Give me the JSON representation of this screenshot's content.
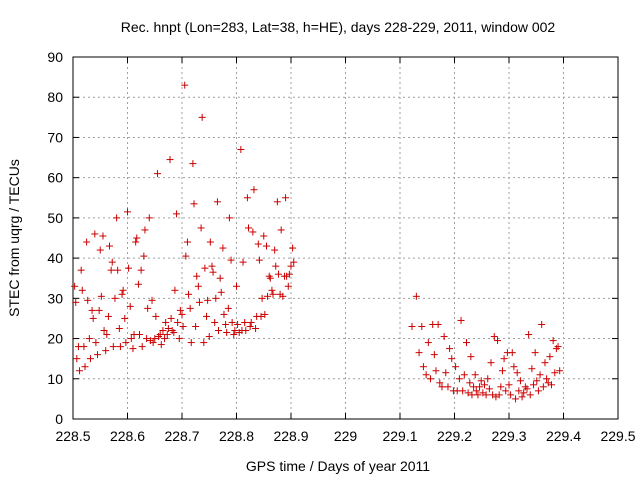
{
  "chart_data": {
    "type": "scatter",
    "title": "Rec. hnpt (Lon=283, Lat=38, h=HE), days 228-229, 2011, window 002",
    "xlabel": "GPS time / Days of year 2011",
    "ylabel": "STEC from uqrg / TECUs",
    "xlim": [
      228.5,
      229.5
    ],
    "ylim": [
      0,
      90
    ],
    "xticks": [
      228.5,
      228.6,
      228.7,
      228.8,
      228.9,
      229,
      229.1,
      229.2,
      229.3,
      229.4,
      229.5
    ],
    "xtick_labels": [
      "228.5",
      "228.6",
      "228.7",
      "228.8",
      "228.9",
      "229",
      "229.1",
      "229.2",
      "229.3",
      "229.4",
      "229.5"
    ],
    "yticks": [
      0,
      10,
      20,
      30,
      40,
      50,
      60,
      70,
      80,
      90
    ],
    "ytick_labels": [
      "0",
      "10",
      "20",
      "30",
      "40",
      "50",
      "60",
      "70",
      "80",
      "90"
    ],
    "grid": true,
    "marker": "+",
    "color": "#cc0000",
    "series": [
      {
        "points": [
          [
            228.503,
            33.0
          ],
          [
            228.505,
            29.0
          ],
          [
            228.507,
            15.0
          ],
          [
            228.51,
            18.0
          ],
          [
            228.512,
            12.0
          ],
          [
            228.515,
            37.0
          ],
          [
            228.517,
            32.0
          ],
          [
            228.52,
            18.0
          ],
          [
            228.522,
            13.0
          ],
          [
            228.525,
            44.0
          ],
          [
            228.527,
            29.5
          ],
          [
            228.53,
            20.0
          ],
          [
            228.532,
            15.0
          ],
          [
            228.535,
            27.0
          ],
          [
            228.537,
            25.0
          ],
          [
            228.54,
            46.0
          ],
          [
            228.542,
            19.0
          ],
          [
            228.545,
            16.0
          ],
          [
            228.548,
            27.0
          ],
          [
            228.55,
            42.0
          ],
          [
            228.552,
            30.5
          ],
          [
            228.555,
            45.5
          ],
          [
            228.557,
            22.0
          ],
          [
            228.56,
            17.0
          ],
          [
            228.562,
            21.0
          ],
          [
            228.565,
            25.5
          ],
          [
            228.567,
            43.0
          ],
          [
            228.57,
            37.0
          ],
          [
            228.572,
            39.0
          ],
          [
            228.574,
            18.0
          ],
          [
            228.577,
            30.0
          ],
          [
            228.58,
            50.0
          ],
          [
            228.582,
            37.0
          ],
          [
            228.585,
            22.5
          ],
          [
            228.587,
            18.0
          ],
          [
            228.59,
            31.0
          ],
          [
            228.592,
            32.0
          ],
          [
            228.595,
            25.0
          ],
          [
            228.597,
            19.0
          ],
          [
            228.6,
            51.5
          ],
          [
            228.602,
            37.5
          ],
          [
            228.605,
            28.0
          ],
          [
            228.607,
            20.0
          ],
          [
            228.61,
            17.5
          ],
          [
            228.612,
            21.0
          ],
          [
            228.615,
            44.0
          ],
          [
            228.617,
            45.0
          ],
          [
            228.62,
            33.5
          ],
          [
            228.622,
            21.0
          ],
          [
            228.625,
            37.0
          ],
          [
            228.627,
            18.0
          ],
          [
            228.63,
            40.5
          ],
          [
            228.632,
            47.0
          ],
          [
            228.635,
            20.0
          ],
          [
            228.637,
            27.5
          ],
          [
            228.64,
            50.0
          ],
          [
            228.642,
            19.5
          ],
          [
            228.645,
            29.5
          ],
          [
            228.647,
            19.0
          ],
          [
            228.65,
            20.0
          ],
          [
            228.652,
            25.5
          ],
          [
            228.655,
            61.0
          ],
          [
            228.657,
            20.5
          ],
          [
            228.66,
            21.0
          ],
          [
            228.662,
            18.5
          ],
          [
            228.665,
            22.0
          ],
          [
            228.668,
            20.0
          ],
          [
            228.67,
            24.0
          ],
          [
            228.673,
            21.0
          ],
          [
            228.675,
            22.5
          ],
          [
            228.678,
            64.5
          ],
          [
            228.68,
            25.0
          ],
          [
            228.682,
            22.0
          ],
          [
            228.685,
            21.5
          ],
          [
            228.687,
            32.0
          ],
          [
            228.69,
            51.0
          ],
          [
            228.692,
            24.0
          ],
          [
            228.695,
            20.0
          ],
          [
            228.697,
            27.0
          ],
          [
            228.7,
            26.0
          ],
          [
            228.702,
            23.0
          ],
          [
            228.705,
            83.0
          ],
          [
            228.707,
            40.5
          ],
          [
            228.71,
            44.0
          ],
          [
            228.712,
            31.0
          ],
          [
            228.715,
            27.5
          ],
          [
            228.717,
            19.0
          ],
          [
            228.72,
            63.5
          ],
          [
            228.722,
            53.5
          ],
          [
            228.725,
            23.0
          ],
          [
            228.727,
            35.5
          ],
          [
            228.73,
            33.0
          ],
          [
            228.732,
            29.0
          ],
          [
            228.735,
            47.5
          ],
          [
            228.737,
            75.0
          ],
          [
            228.74,
            19.0
          ],
          [
            228.742,
            37.5
          ],
          [
            228.745,
            25.5
          ],
          [
            228.747,
            29.5
          ],
          [
            228.75,
            20.5
          ],
          [
            228.752,
            44.0
          ],
          [
            228.755,
            38.0
          ],
          [
            228.757,
            36.5
          ],
          [
            228.76,
            24.0
          ],
          [
            228.762,
            30.0
          ],
          [
            228.765,
            54.0
          ],
          [
            228.767,
            22.0
          ],
          [
            228.77,
            35.0
          ],
          [
            228.772,
            31.5
          ],
          [
            228.775,
            42.5
          ],
          [
            228.777,
            26.0
          ],
          [
            228.78,
            23.5
          ],
          [
            228.782,
            21.5
          ],
          [
            228.785,
            27.5
          ],
          [
            228.787,
            50.0
          ],
          [
            228.79,
            39.5
          ],
          [
            228.792,
            24.0
          ],
          [
            228.795,
            21.0
          ],
          [
            228.797,
            22.0
          ],
          [
            228.8,
            33.0
          ],
          [
            228.802,
            23.5
          ],
          [
            228.805,
            21.5
          ],
          [
            228.808,
            67.0
          ],
          [
            228.81,
            22.0
          ],
          [
            228.812,
            39.0
          ],
          [
            228.815,
            24.0
          ],
          [
            228.817,
            22.0
          ],
          [
            228.82,
            55.0
          ],
          [
            228.822,
            47.5
          ],
          [
            228.825,
            23.0
          ],
          [
            228.827,
            24.0
          ],
          [
            228.83,
            46.5
          ],
          [
            228.832,
            57.0
          ],
          [
            228.835,
            22.5
          ],
          [
            228.837,
            25.5
          ],
          [
            228.84,
            43.5
          ],
          [
            228.842,
            39.5
          ],
          [
            228.845,
            25.5
          ],
          [
            228.847,
            30.0
          ],
          [
            228.85,
            45.5
          ],
          [
            228.852,
            26.0
          ],
          [
            228.855,
            43.0
          ],
          [
            228.857,
            30.5
          ],
          [
            228.86,
            35.5
          ],
          [
            228.862,
            35.0
          ],
          [
            228.865,
            32.0
          ],
          [
            228.867,
            31.0
          ],
          [
            228.87,
            42.0
          ],
          [
            228.872,
            38.0
          ],
          [
            228.875,
            54.0
          ],
          [
            228.877,
            36.0
          ],
          [
            228.88,
            31.0
          ],
          [
            228.882,
            47.0
          ],
          [
            228.885,
            30.5
          ],
          [
            228.888,
            35.5
          ],
          [
            228.89,
            55.0
          ],
          [
            228.892,
            35.5
          ],
          [
            228.895,
            33.0
          ],
          [
            228.897,
            36.0
          ],
          [
            228.9,
            38.0
          ],
          [
            228.903,
            42.5
          ],
          [
            228.905,
            39.0
          ]
        ]
      },
      {
        "points": [
          [
            229.122,
            23.0
          ],
          [
            229.13,
            30.5
          ],
          [
            229.135,
            16.5
          ],
          [
            229.14,
            23.0
          ],
          [
            229.143,
            13.0
          ],
          [
            229.148,
            11.0
          ],
          [
            229.152,
            19.0
          ],
          [
            229.156,
            10.0
          ],
          [
            229.16,
            23.5
          ],
          [
            229.163,
            16.0
          ],
          [
            229.166,
            12.0
          ],
          [
            229.17,
            23.5
          ],
          [
            229.173,
            9.0
          ],
          [
            229.177,
            8.0
          ],
          [
            229.181,
            20.5
          ],
          [
            229.184,
            11.5
          ],
          [
            229.188,
            8.0
          ],
          [
            229.191,
            17.5
          ],
          [
            229.195,
            15.0
          ],
          [
            229.198,
            7.0
          ],
          [
            229.202,
            13.0
          ],
          [
            229.205,
            7.0
          ],
          [
            229.209,
            10.0
          ],
          [
            229.212,
            24.5
          ],
          [
            229.215,
            7.0
          ],
          [
            229.218,
            11.0
          ],
          [
            229.222,
            19.0
          ],
          [
            229.225,
            6.5
          ],
          [
            229.228,
            9.0
          ],
          [
            229.23,
            15.5
          ],
          [
            229.232,
            6.0
          ],
          [
            229.235,
            8.0
          ],
          [
            229.238,
            11.0
          ],
          [
            229.24,
            7.0
          ],
          [
            229.243,
            6.0
          ],
          [
            229.246,
            8.0
          ],
          [
            229.249,
            9.5
          ],
          [
            229.252,
            6.5
          ],
          [
            229.255,
            8.5
          ],
          [
            229.258,
            6.0
          ],
          [
            229.261,
            10.0
          ],
          [
            229.264,
            7.5
          ],
          [
            229.267,
            14.0
          ],
          [
            229.27,
            6.0
          ],
          [
            229.273,
            20.5
          ],
          [
            229.276,
            5.5
          ],
          [
            229.279,
            19.5
          ],
          [
            229.282,
            6.0
          ],
          [
            229.285,
            8.0
          ],
          [
            229.288,
            12.0
          ],
          [
            229.291,
            15.0
          ],
          [
            229.294,
            7.0
          ],
          [
            229.297,
            16.5
          ],
          [
            229.3,
            8.5
          ],
          [
            229.303,
            6.0
          ],
          [
            229.306,
            16.5
          ],
          [
            229.309,
            13.0
          ],
          [
            229.312,
            5.0
          ],
          [
            229.315,
            11.5
          ],
          [
            229.318,
            7.0
          ],
          [
            229.321,
            9.5
          ],
          [
            229.324,
            5.5
          ],
          [
            229.327,
            6.5
          ],
          [
            229.33,
            8.0
          ],
          [
            229.333,
            7.5
          ],
          [
            229.336,
            21.0
          ],
          [
            229.339,
            6.0
          ],
          [
            229.342,
            12.5
          ],
          [
            229.345,
            8.5
          ],
          [
            229.348,
            16.5
          ],
          [
            229.351,
            9.5
          ],
          [
            229.354,
            7.0
          ],
          [
            229.357,
            11.0
          ],
          [
            229.36,
            23.5
          ],
          [
            229.363,
            8.0
          ],
          [
            229.366,
            14.0
          ],
          [
            229.369,
            10.0
          ],
          [
            229.372,
            9.0
          ],
          [
            229.375,
            15.5
          ],
          [
            229.378,
            8.5
          ],
          [
            229.381,
            19.5
          ],
          [
            229.384,
            11.5
          ],
          [
            229.387,
            17.5
          ],
          [
            229.39,
            18.0
          ],
          [
            229.393,
            12.0
          ]
        ]
      }
    ]
  }
}
